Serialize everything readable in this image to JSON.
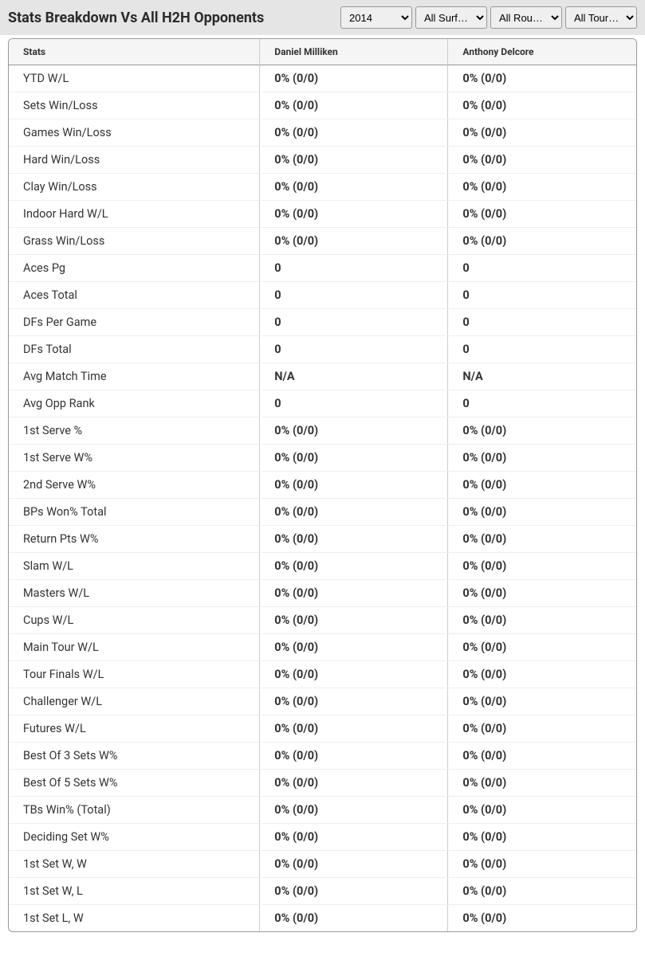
{
  "header": {
    "title": "Stats Breakdown Vs All H2H Opponents"
  },
  "filters": {
    "year": {
      "selected": "2014",
      "options": [
        "2014"
      ]
    },
    "surface": {
      "selected": "All Surf…",
      "options": [
        "All Surf…"
      ]
    },
    "round": {
      "selected": "All Rou…",
      "options": [
        "All Rou…"
      ]
    },
    "tour": {
      "selected": "All Tour…",
      "options": [
        "All Tour…"
      ]
    }
  },
  "table": {
    "columns": [
      "Stats",
      "Daniel Milliken",
      "Anthony Delcore"
    ],
    "col_widths": [
      "40%",
      "30%",
      "30%"
    ],
    "header_bg": "#f5f5f5",
    "border_color": "#999",
    "cell_border_color": "#ccc",
    "row_border_color": "#eee",
    "text_color": "#333",
    "header_fontsize": 12,
    "cell_fontsize": 14.5,
    "rows": [
      {
        "stat": "YTD W/L",
        "p1": "0% (0/0)",
        "p2": "0% (0/0)"
      },
      {
        "stat": "Sets Win/Loss",
        "p1": "0% (0/0)",
        "p2": "0% (0/0)"
      },
      {
        "stat": "Games Win/Loss",
        "p1": "0% (0/0)",
        "p2": "0% (0/0)"
      },
      {
        "stat": "Hard Win/Loss",
        "p1": "0% (0/0)",
        "p2": "0% (0/0)"
      },
      {
        "stat": "Clay Win/Loss",
        "p1": "0% (0/0)",
        "p2": "0% (0/0)"
      },
      {
        "stat": "Indoor Hard W/L",
        "p1": "0% (0/0)",
        "p2": "0% (0/0)"
      },
      {
        "stat": "Grass Win/Loss",
        "p1": "0% (0/0)",
        "p2": "0% (0/0)"
      },
      {
        "stat": "Aces Pg",
        "p1": "0",
        "p2": "0"
      },
      {
        "stat": "Aces Total",
        "p1": "0",
        "p2": "0"
      },
      {
        "stat": "DFs Per Game",
        "p1": "0",
        "p2": "0"
      },
      {
        "stat": "DFs Total",
        "p1": "0",
        "p2": "0"
      },
      {
        "stat": "Avg Match Time",
        "p1": "N/A",
        "p2": "N/A"
      },
      {
        "stat": "Avg Opp Rank",
        "p1": "0",
        "p2": "0"
      },
      {
        "stat": "1st Serve %",
        "p1": "0% (0/0)",
        "p2": "0% (0/0)"
      },
      {
        "stat": "1st Serve W%",
        "p1": "0% (0/0)",
        "p2": "0% (0/0)"
      },
      {
        "stat": "2nd Serve W%",
        "p1": "0% (0/0)",
        "p2": "0% (0/0)"
      },
      {
        "stat": "BPs Won% Total",
        "p1": "0% (0/0)",
        "p2": "0% (0/0)"
      },
      {
        "stat": "Return Pts W%",
        "p1": "0% (0/0)",
        "p2": "0% (0/0)"
      },
      {
        "stat": "Slam W/L",
        "p1": "0% (0/0)",
        "p2": "0% (0/0)"
      },
      {
        "stat": "Masters W/L",
        "p1": "0% (0/0)",
        "p2": "0% (0/0)"
      },
      {
        "stat": "Cups W/L",
        "p1": "0% (0/0)",
        "p2": "0% (0/0)"
      },
      {
        "stat": "Main Tour W/L",
        "p1": "0% (0/0)",
        "p2": "0% (0/0)"
      },
      {
        "stat": "Tour Finals W/L",
        "p1": "0% (0/0)",
        "p2": "0% (0/0)"
      },
      {
        "stat": "Challenger W/L",
        "p1": "0% (0/0)",
        "p2": "0% (0/0)"
      },
      {
        "stat": "Futures W/L",
        "p1": "0% (0/0)",
        "p2": "0% (0/0)"
      },
      {
        "stat": "Best Of 3 Sets W%",
        "p1": "0% (0/0)",
        "p2": "0% (0/0)"
      },
      {
        "stat": "Best Of 5 Sets W%",
        "p1": "0% (0/0)",
        "p2": "0% (0/0)"
      },
      {
        "stat": "TBs Win% (Total)",
        "p1": "0% (0/0)",
        "p2": "0% (0/0)"
      },
      {
        "stat": "Deciding Set W%",
        "p1": "0% (0/0)",
        "p2": "0% (0/0)"
      },
      {
        "stat": "1st Set W, W",
        "p1": "0% (0/0)",
        "p2": "0% (0/0)"
      },
      {
        "stat": "1st Set W, L",
        "p1": "0% (0/0)",
        "p2": "0% (0/0)"
      },
      {
        "stat": "1st Set L, W",
        "p1": "0% (0/0)",
        "p2": "0% (0/0)"
      }
    ]
  },
  "colors": {
    "header_bar_bg": "#e5e5e5",
    "title_color": "#2b2b2b",
    "body_bg": "#ffffff"
  }
}
